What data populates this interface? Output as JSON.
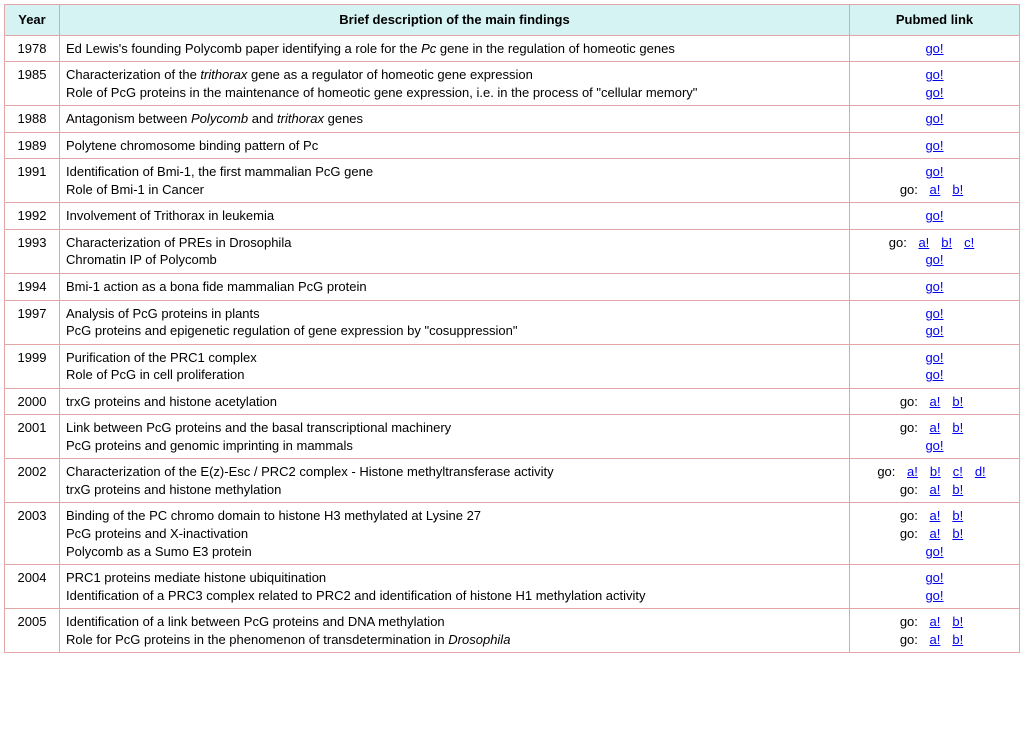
{
  "colors": {
    "header_bg": "#d5f3f3",
    "border": "#e2a6a6",
    "link": "#0000ee",
    "text": "#000000",
    "background": "#ffffff"
  },
  "columns": {
    "year": "Year",
    "desc": "Brief description of the main findings",
    "pubmed": "Pubmed link"
  },
  "link_text": {
    "go": "go!",
    "go_prefix": "go:",
    "a": "a!",
    "b": "b!",
    "c": "c!",
    "d": "d!"
  },
  "rows": [
    {
      "year": "1978",
      "desc": [
        [
          {
            "t": "Ed Lewis's founding  Polycomb paper identifying a role for the "
          },
          {
            "t": "Pc",
            "i": true
          },
          {
            "t": " gene in the regulation of homeotic genes"
          }
        ]
      ],
      "links": [
        {
          "type": "single"
        }
      ]
    },
    {
      "year": "1985",
      "desc": [
        [
          {
            "t": "Characterization of the "
          },
          {
            "t": "trithorax",
            "i": true
          },
          {
            "t": " gene as a regulator of homeotic gene expression"
          }
        ],
        [
          {
            "t": "Role of PcG proteins in the maintenance of homeotic gene expression, i.e. in the process of \"cellular memory\""
          }
        ]
      ],
      "links": [
        {
          "type": "single"
        },
        {
          "type": "single"
        }
      ]
    },
    {
      "year": "1988",
      "desc": [
        [
          {
            "t": "Antagonism between "
          },
          {
            "t": "Polycomb",
            "i": true
          },
          {
            "t": " and "
          },
          {
            "t": "trithorax",
            "i": true
          },
          {
            "t": " genes"
          }
        ]
      ],
      "links": [
        {
          "type": "single"
        }
      ]
    },
    {
      "year": "1989",
      "desc": [
        [
          {
            "t": "Polytene chromosome binding pattern of Pc"
          }
        ]
      ],
      "links": [
        {
          "type": "single"
        }
      ]
    },
    {
      "year": "1991",
      "desc": [
        [
          {
            "t": "Identification of Bmi-1, the first mammalian PcG gene"
          }
        ],
        [
          {
            "t": "Role of Bmi-1 in Cancer"
          }
        ]
      ],
      "links": [
        {
          "type": "single"
        },
        {
          "type": "multi",
          "items": [
            "a",
            "b"
          ]
        }
      ]
    },
    {
      "year": "1992",
      "desc": [
        [
          {
            "t": "Involvement of Trithorax in leukemia"
          }
        ]
      ],
      "links": [
        {
          "type": "single"
        }
      ]
    },
    {
      "year": "1993",
      "desc": [
        [
          {
            "t": "Characterization of PREs in Drosophila"
          }
        ],
        [
          {
            "t": "Chromatin IP of Polycomb"
          }
        ]
      ],
      "links": [
        {
          "type": "multi",
          "items": [
            "a",
            "b",
            "c"
          ]
        },
        {
          "type": "single"
        }
      ]
    },
    {
      "year": "1994",
      "desc": [
        [
          {
            "t": "Bmi-1 action as a bona fide mammalian PcG protein"
          }
        ]
      ],
      "links": [
        {
          "type": "single"
        }
      ]
    },
    {
      "year": "1997",
      "desc": [
        [
          {
            "t": "Analysis of PcG proteins in plants"
          }
        ],
        [
          {
            "t": "PcG proteins and epigenetic regulation of gene expression by \"cosuppression\""
          }
        ]
      ],
      "links": [
        {
          "type": "single"
        },
        {
          "type": "single"
        }
      ]
    },
    {
      "year": "1999",
      "desc": [
        [
          {
            "t": "Purification of the PRC1 complex"
          }
        ],
        [
          {
            "t": "Role of PcG in cell proliferation"
          }
        ]
      ],
      "links": [
        {
          "type": "single"
        },
        {
          "type": "single"
        }
      ]
    },
    {
      "year": "2000",
      "desc": [
        [
          {
            "t": "trxG proteins and histone acetylation"
          }
        ]
      ],
      "links": [
        {
          "type": "multi",
          "items": [
            "a",
            "b"
          ]
        }
      ]
    },
    {
      "year": "2001",
      "desc": [
        [
          {
            "t": "Link between PcG proteins and the basal transcriptional machinery"
          }
        ],
        [
          {
            "t": "PcG proteins and genomic imprinting in mammals"
          }
        ]
      ],
      "links": [
        {
          "type": "multi",
          "items": [
            "a",
            "b"
          ]
        },
        {
          "type": "single"
        }
      ]
    },
    {
      "year": "2002",
      "desc": [
        [
          {
            "t": "Characterization of the E(z)-Esc / PRC2 complex - Histone methyltransferase activity"
          }
        ],
        [
          {
            "t": "trxG proteins and histone methylation"
          }
        ]
      ],
      "links": [
        {
          "type": "multi",
          "items": [
            "a",
            "b",
            "c",
            "d"
          ]
        },
        {
          "type": "multi",
          "items": [
            "a",
            "b"
          ]
        }
      ]
    },
    {
      "year": "2003",
      "desc": [
        [
          {
            "t": "Binding of the PC chromo domain to histone H3 methylated at Lysine 27"
          }
        ],
        [
          {
            "t": "PcG proteins and X-inactivation"
          }
        ],
        [
          {
            "t": "Polycomb as a Sumo E3 protein"
          }
        ]
      ],
      "links": [
        {
          "type": "multi",
          "items": [
            "a",
            "b"
          ]
        },
        {
          "type": "multi",
          "items": [
            "a",
            "b"
          ]
        },
        {
          "type": "single"
        }
      ]
    },
    {
      "year": "2004",
      "desc": [
        [
          {
            "t": "PRC1 proteins mediate histone ubiquitination"
          }
        ],
        [
          {
            "t": "Identification of a PRC3 complex related to PRC2 and identification of histone H1 methylation activity"
          }
        ]
      ],
      "links": [
        {
          "type": "single"
        },
        {
          "type": "single"
        }
      ]
    },
    {
      "year": "2005",
      "desc": [
        [
          {
            "t": "Identification of a link between PcG proteins and DNA methylation"
          }
        ],
        [
          {
            "t": "Role for PcG proteins in the phenomenon of transdetermination in "
          },
          {
            "t": "Drosophila",
            "i": true
          }
        ]
      ],
      "links": [
        {
          "type": "multi",
          "items": [
            "a",
            "b"
          ]
        },
        {
          "type": "multi",
          "items": [
            "a",
            "b"
          ]
        }
      ]
    }
  ]
}
